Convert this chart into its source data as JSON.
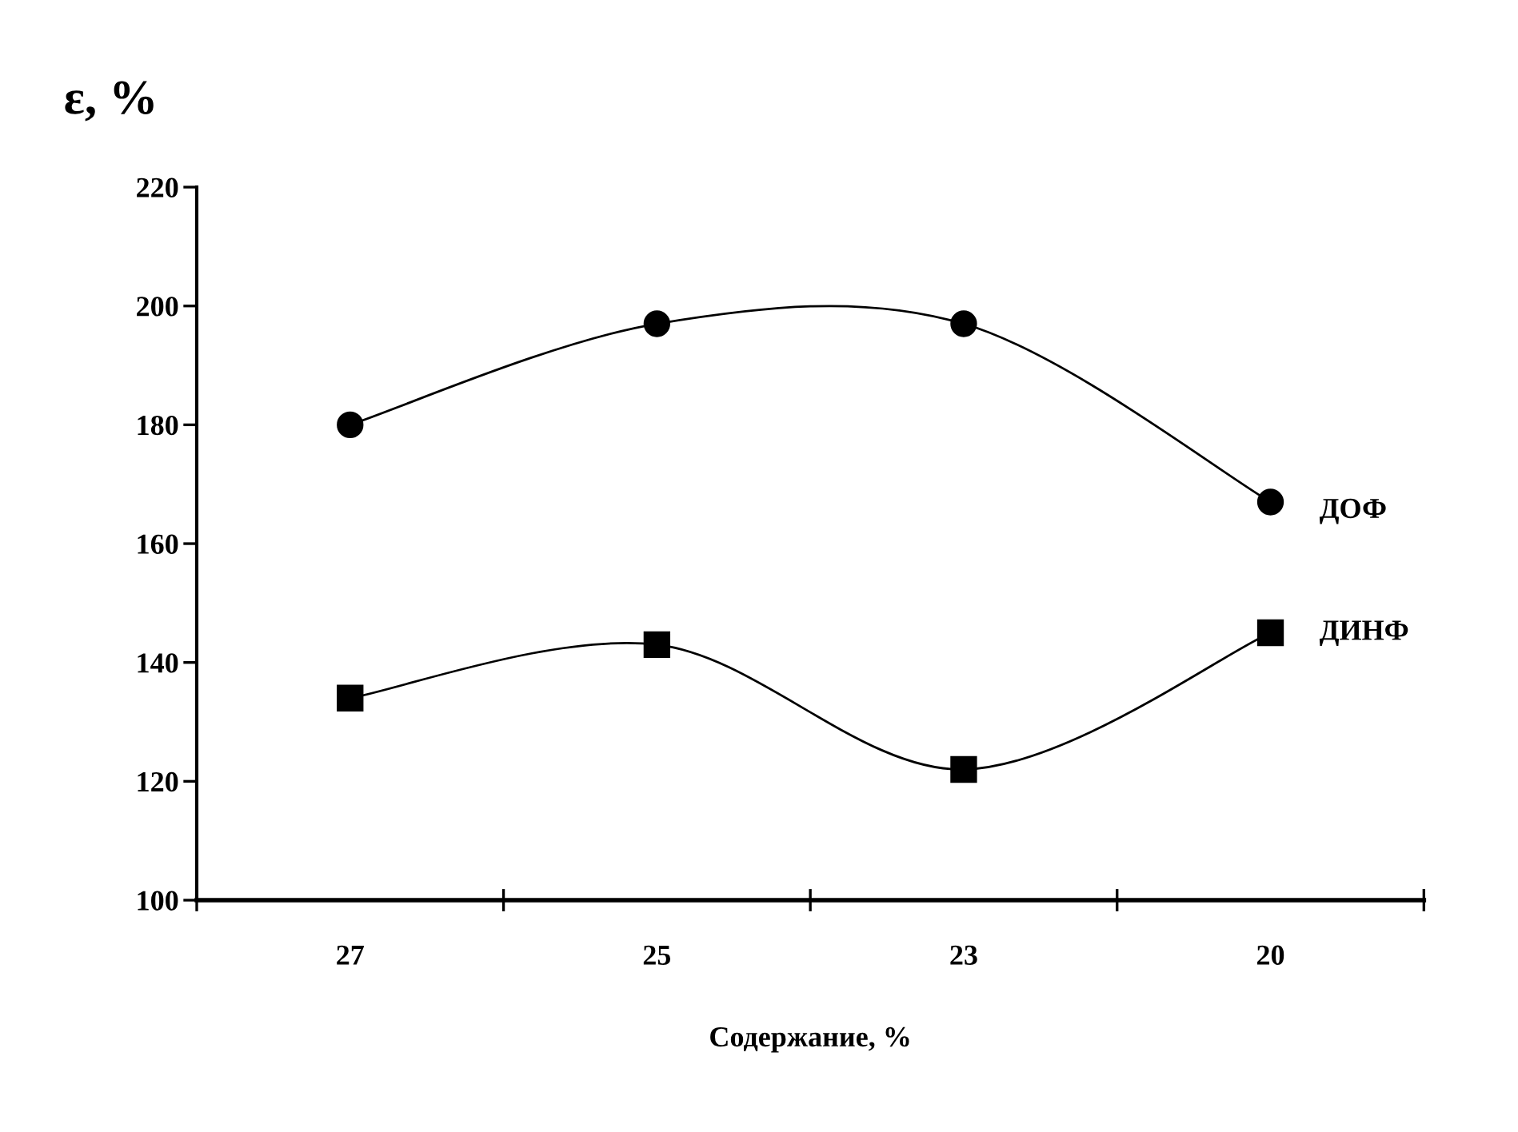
{
  "chart_data": {
    "type": "line",
    "xlabel": "Содержание, %",
    "ylabel": "ε, %",
    "categories": [
      "27",
      "25",
      "23",
      "20"
    ],
    "series": [
      {
        "name": "ДОФ",
        "color": "#000000",
        "marker": "circle",
        "values": [
          180,
          197,
          197,
          167
        ]
      },
      {
        "name": "ДИНФ",
        "color": "#000000",
        "marker": "square",
        "values": [
          134,
          143,
          122,
          145
        ]
      }
    ],
    "ylim": [
      100,
      220
    ],
    "yticks": [
      100,
      120,
      140,
      160,
      180,
      200,
      220
    ],
    "grid": false,
    "legend": false,
    "line_style": "solid"
  }
}
